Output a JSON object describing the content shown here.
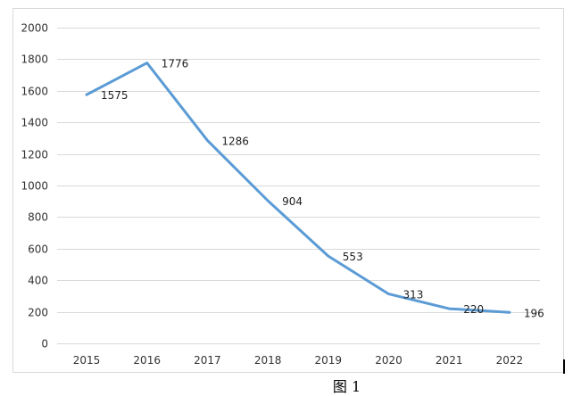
{
  "figure": {
    "caption": "图 1"
  },
  "colors": {
    "line": "#5b9bd5",
    "grid": "#d9d9d9",
    "border": "#d9d9d9",
    "background": "#ffffff"
  },
  "chart_data": {
    "type": "line",
    "title": "",
    "xlabel": "",
    "ylabel": "",
    "x": [
      "2015",
      "2016",
      "2017",
      "2018",
      "2019",
      "2020",
      "2021",
      "2022"
    ],
    "series": [
      {
        "values": [
          1575,
          1776,
          1286,
          904,
          553,
          313,
          220,
          196
        ]
      }
    ],
    "data_labels": [
      "1575",
      "1776",
      "1286",
      "904",
      "553",
      "313",
      "220",
      "196"
    ],
    "y_ticks": [
      "0",
      "200",
      "400",
      "600",
      "800",
      "1000",
      "1200",
      "1400",
      "1600",
      "1800",
      "2000"
    ],
    "ylim": [
      0,
      2000
    ],
    "grid": true,
    "legend": false
  }
}
